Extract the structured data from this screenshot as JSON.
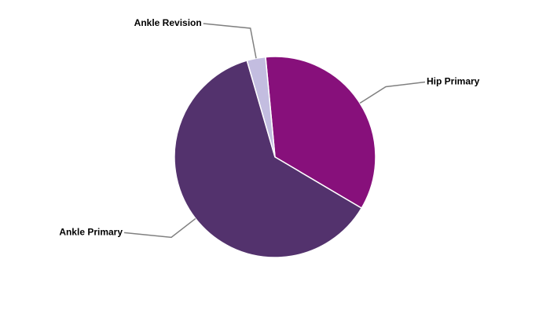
{
  "chart_data": {
    "type": "pie",
    "categories": [
      "Hip Primary",
      "Ankle Primary",
      "Ankle Revision"
    ],
    "values": [
      35,
      62,
      3
    ],
    "colors": [
      "#87107b",
      "#53326d",
      "#c3bde0"
    ]
  }
}
